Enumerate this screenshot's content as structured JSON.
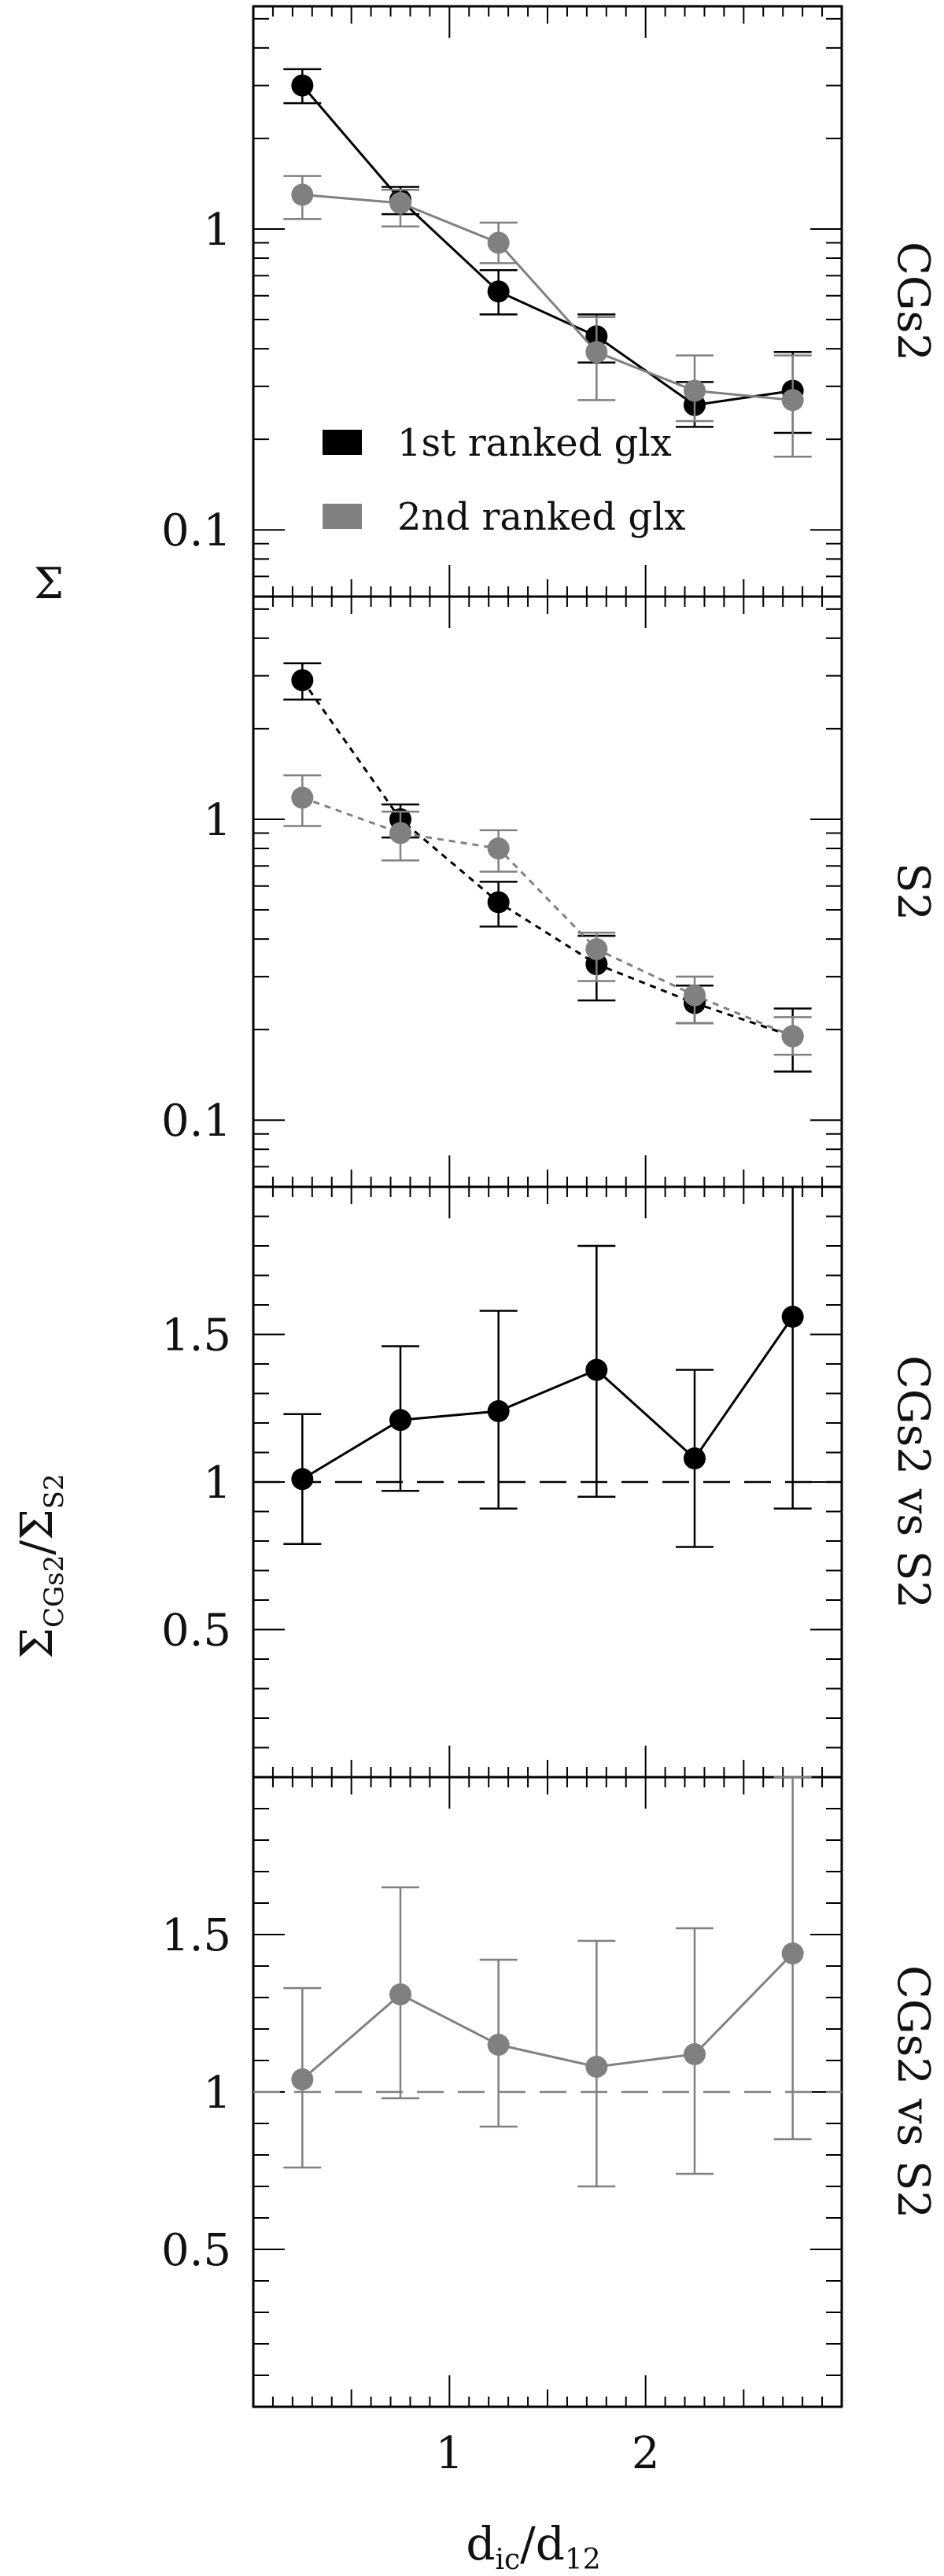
{
  "figure": {
    "xlabel": "d_ic/d_12",
    "x_ticks": [
      "1",
      "2"
    ],
    "ylabel_top": "Σ",
    "ylabel_bottom": "Σ_CGs2/Σ_S2",
    "colors": {
      "black": "#000000",
      "gray": "#808080"
    }
  },
  "chart_data": [
    {
      "type": "scatter",
      "panel_label": "CGs2",
      "xlim": [
        0,
        3
      ],
      "ylim": [
        0.06,
        5.5
      ],
      "yscale": "log",
      "y_ticks": [
        "0.1",
        "1"
      ],
      "legend": {
        "placement": "lower-left",
        "entries": [
          "1st ranked glx",
          "2nd ranked glx"
        ]
      },
      "line_style": "solid",
      "series": [
        {
          "name": "1st ranked glx",
          "color": "#000000",
          "x": [
            0.25,
            0.75,
            1.25,
            1.75,
            2.25,
            2.75
          ],
          "y": [
            3.0,
            1.25,
            0.62,
            0.44,
            0.26,
            0.29
          ],
          "yerr_low": [
            2.62,
            1.12,
            0.52,
            0.36,
            0.22,
            0.21
          ],
          "yerr_high": [
            3.4,
            1.38,
            0.73,
            0.52,
            0.31,
            0.39
          ]
        },
        {
          "name": "2nd ranked glx",
          "color": "#808080",
          "x": [
            0.25,
            0.75,
            1.25,
            1.75,
            2.25,
            2.75
          ],
          "y": [
            1.3,
            1.22,
            0.9,
            0.39,
            0.29,
            0.27
          ],
          "yerr_low": [
            1.08,
            1.02,
            0.77,
            0.27,
            0.23,
            0.175
          ],
          "yerr_high": [
            1.5,
            1.35,
            1.05,
            0.51,
            0.38,
            0.38
          ]
        }
      ]
    },
    {
      "type": "scatter",
      "panel_label": "S2",
      "xlim": [
        0,
        3
      ],
      "ylim": [
        0.06,
        5.5
      ],
      "yscale": "log",
      "y_ticks": [
        "0.1",
        "1"
      ],
      "line_style": "dotted",
      "series": [
        {
          "name": "1st ranked glx",
          "color": "#000000",
          "x": [
            0.25,
            0.75,
            1.25,
            1.75,
            2.25,
            2.75
          ],
          "y": [
            2.9,
            1.0,
            0.53,
            0.33,
            0.245,
            0.19
          ],
          "yerr_low": [
            2.5,
            0.87,
            0.44,
            0.25,
            0.21,
            0.145
          ],
          "yerr_high": [
            3.3,
            1.12,
            0.62,
            0.41,
            0.28,
            0.235
          ]
        },
        {
          "name": "2nd ranked glx",
          "color": "#808080",
          "x": [
            0.25,
            0.75,
            1.25,
            1.75,
            2.25,
            2.75
          ],
          "y": [
            1.18,
            0.9,
            0.8,
            0.37,
            0.26,
            0.19
          ],
          "yerr_low": [
            0.95,
            0.73,
            0.67,
            0.29,
            0.21,
            0.165
          ],
          "yerr_high": [
            1.4,
            1.06,
            0.92,
            0.42,
            0.3,
            0.22
          ]
        }
      ]
    },
    {
      "type": "scatter",
      "panel_label": "CGs2 vs S2",
      "xlim": [
        0,
        3
      ],
      "ylim": [
        0,
        2
      ],
      "yscale": "linear",
      "y_ticks": [
        "0.5",
        "1",
        "1.5"
      ],
      "reference_line": 1,
      "series": [
        {
          "name": "1st ranked glx",
          "color": "#000000",
          "x": [
            0.25,
            0.75,
            1.25,
            1.75,
            2.25,
            2.75
          ],
          "y": [
            1.01,
            1.21,
            1.24,
            1.38,
            1.08,
            1.56
          ],
          "yerr_low": [
            0.79,
            0.97,
            0.91,
            0.95,
            0.78,
            0.91
          ],
          "yerr_high": [
            1.23,
            1.46,
            1.58,
            1.8,
            1.38,
            2.0
          ]
        }
      ]
    },
    {
      "type": "scatter",
      "panel_label": "CGs2 vs S2",
      "xlim": [
        0,
        3
      ],
      "ylim": [
        0,
        2
      ],
      "yscale": "linear",
      "y_ticks": [
        "0.5",
        "1",
        "1.5"
      ],
      "reference_line": 1,
      "series": [
        {
          "name": "2nd ranked glx",
          "color": "#808080",
          "x": [
            0.25,
            0.75,
            1.25,
            1.75,
            2.25,
            2.75
          ],
          "y": [
            1.04,
            1.31,
            1.15,
            1.08,
            1.12,
            1.44
          ],
          "yerr_low": [
            0.76,
            0.98,
            0.89,
            0.7,
            0.74,
            0.85
          ],
          "yerr_high": [
            1.33,
            1.65,
            1.42,
            1.48,
            1.52,
            2.0
          ]
        }
      ]
    }
  ]
}
